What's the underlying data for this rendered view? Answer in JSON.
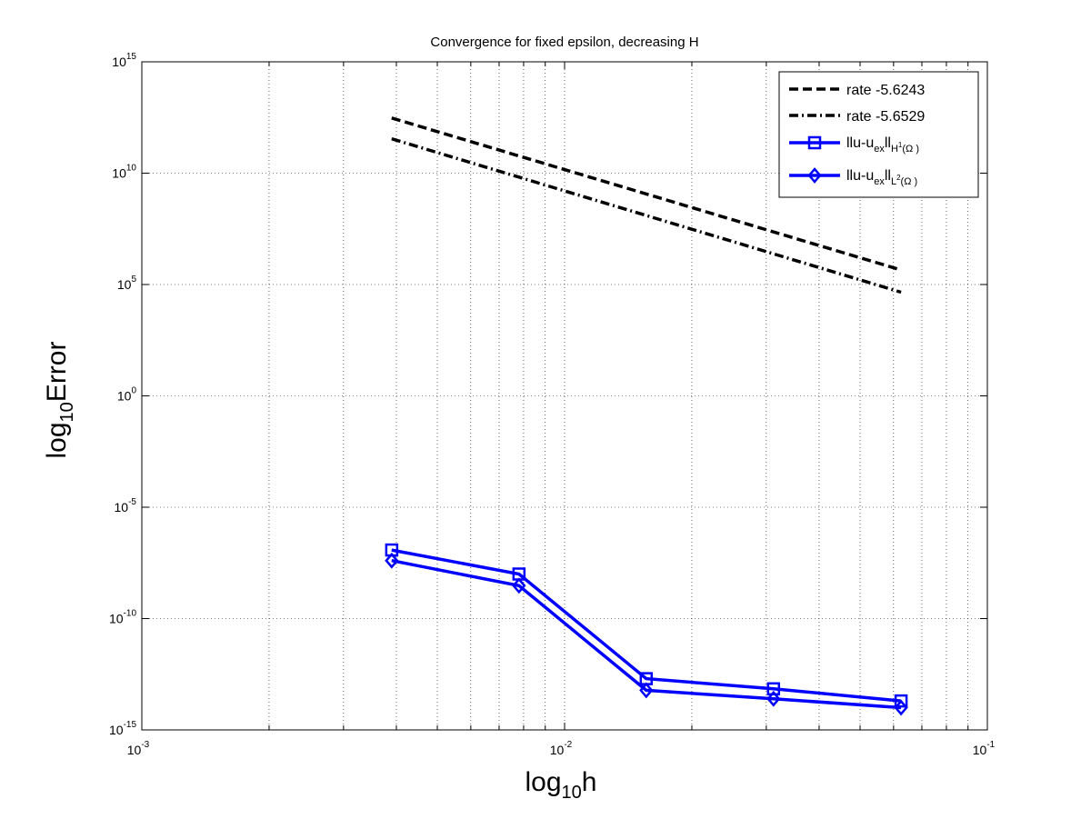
{
  "chart_data": {
    "type": "line",
    "title": "Convergence for fixed epsilon, decreasing H",
    "xlabel": {
      "main": "log",
      "sub": "10",
      "rest": "h"
    },
    "ylabel": {
      "main": "log",
      "sub": "10",
      "rest": "Error"
    },
    "xscale": "log",
    "yscale": "log",
    "xlim": [
      0.001,
      0.1
    ],
    "ylim": [
      1e-15,
      1000000000000000.0
    ],
    "grid": true,
    "legend_position": "top-right",
    "xticks": [
      {
        "base": "10",
        "exp": "-3"
      },
      {
        "base": "10",
        "exp": "-2"
      },
      {
        "base": "10",
        "exp": "-1"
      }
    ],
    "yticks": [
      {
        "base": "10",
        "exp": "-15"
      },
      {
        "base": "10",
        "exp": "-10"
      },
      {
        "base": "10",
        "exp": "-5"
      },
      {
        "base": "10",
        "exp": "0"
      },
      {
        "base": "10",
        "exp": "5"
      },
      {
        "base": "10",
        "exp": "10"
      },
      {
        "base": "10",
        "exp": "15"
      }
    ],
    "series": [
      {
        "name": "rate -5.6243",
        "style": "dashed",
        "color": "#000000",
        "marker": "none",
        "x": [
          0.0039,
          0.0625
        ],
        "y": [
          3000000000000.0,
          450000.0
        ]
      },
      {
        "name": "rate -5.6529",
        "style": "dashdot",
        "color": "#000000",
        "marker": "none",
        "x": [
          0.0039,
          0.0625
        ],
        "y": [
          350000000000.0,
          45000.0
        ]
      },
      {
        "name": "||u-u_ex||_H1(Ω)",
        "legend": {
          "a": "llu-u",
          "b": "ex",
          "c": "ll",
          "d": "H",
          "e": "1",
          "f": "(Ω )"
        },
        "style": "solid",
        "color": "#0000ff",
        "marker": "square",
        "x": [
          0.0039,
          0.0078,
          0.0156,
          0.0312,
          0.0625
        ],
        "y": [
          1.2e-07,
          1e-08,
          2e-13,
          7e-14,
          2e-14
        ]
      },
      {
        "name": "||u-u_ex||_L2(Ω)",
        "legend": {
          "a": "llu-u",
          "b": "ex",
          "c": "ll",
          "d": "L",
          "e": "2",
          "f": "(Ω )"
        },
        "style": "solid",
        "color": "#0000ff",
        "marker": "diamond",
        "x": [
          0.0039,
          0.0078,
          0.0156,
          0.0312,
          0.0625
        ],
        "y": [
          4e-08,
          3e-09,
          6e-14,
          2.5e-14,
          1e-14
        ]
      }
    ]
  }
}
